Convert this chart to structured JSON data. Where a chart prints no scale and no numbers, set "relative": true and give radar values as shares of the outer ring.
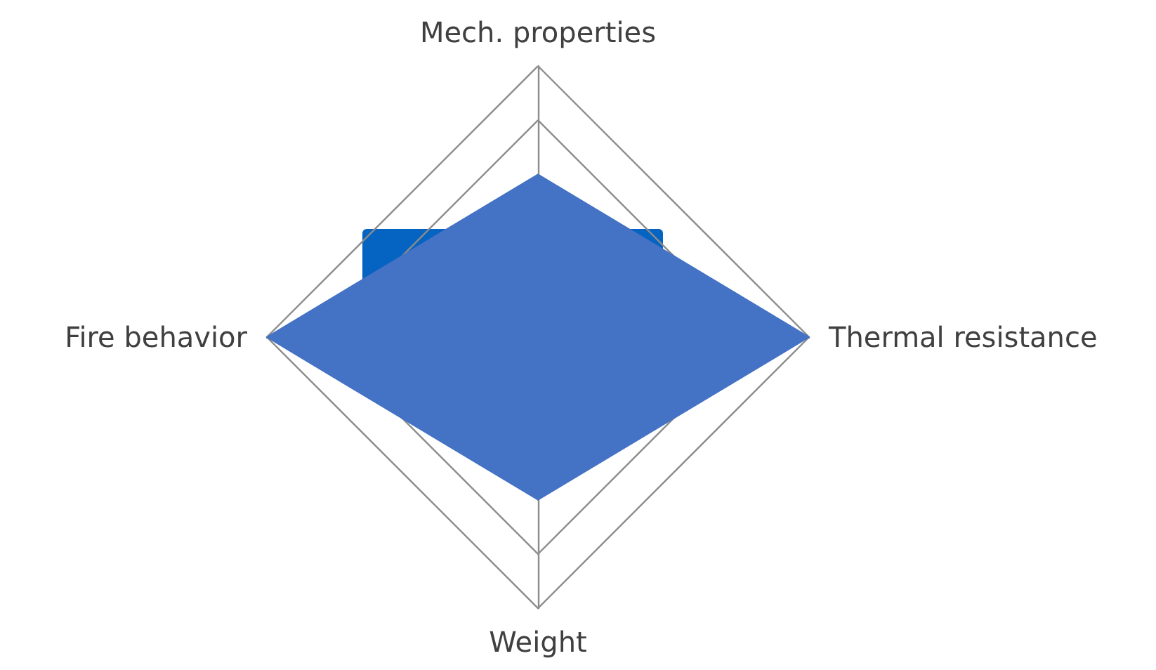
{
  "chart_data": {
    "type": "radar",
    "relative": true,
    "categories": [
      "Mech. properties",
      "Thermal resistance",
      "Weight",
      "Fire behavior"
    ],
    "series": [
      {
        "color": "#4472c4",
        "values": [
          0.6,
          1,
          0.6,
          1
        ]
      }
    ],
    "marker": "none"
  }
}
